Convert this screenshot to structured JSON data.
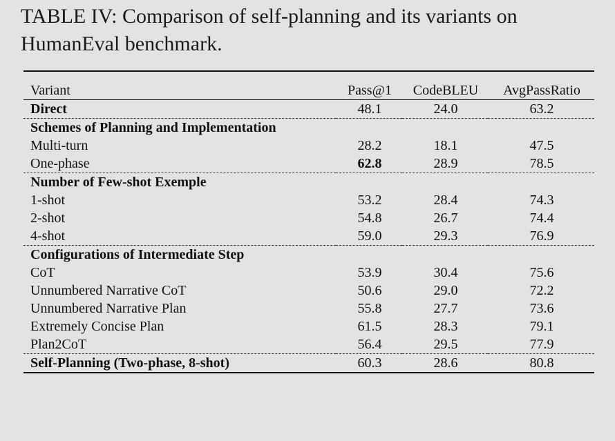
{
  "caption": "TABLE IV: Comparison of self-planning and its variants on HumanEval benchmark.",
  "columns": [
    "Variant",
    "Pass@1",
    "CodeBLEU",
    "AvgPassRatio"
  ],
  "direct": {
    "label": "Direct",
    "values": [
      "48.1",
      "24.0",
      "63.2"
    ]
  },
  "groups": [
    {
      "title": "Schemes of Planning and Implementation",
      "rows": [
        {
          "label": "Multi-turn",
          "values": [
            "28.2",
            "18.1",
            "47.5"
          ]
        },
        {
          "label": "One-phase",
          "values": [
            "62.8",
            "28.9",
            "78.5"
          ]
        }
      ]
    },
    {
      "title": "Number of Few-shot Exemple",
      "rows": [
        {
          "label": "1-shot",
          "values": [
            "53.2",
            "28.4",
            "74.3"
          ]
        },
        {
          "label": "2-shot",
          "values": [
            "54.8",
            "26.7",
            "74.4"
          ]
        },
        {
          "label": "4-shot",
          "values": [
            "59.0",
            "29.3",
            "76.9"
          ]
        }
      ]
    },
    {
      "title": "Configurations of Intermediate Step",
      "rows": [
        {
          "label": "CoT",
          "values": [
            "53.9",
            "30.4",
            "75.6"
          ]
        },
        {
          "label": "Unnumbered Narrative CoT",
          "values": [
            "50.6",
            "29.0",
            "72.2"
          ]
        },
        {
          "label": "Unnumbered Narrative Plan",
          "values": [
            "55.8",
            "27.7",
            "73.6"
          ]
        },
        {
          "label": "Extremely Concise Plan",
          "values": [
            "61.5",
            "28.3",
            "79.1"
          ]
        },
        {
          "label": "Plan2CoT",
          "values": [
            "56.4",
            "29.5",
            "77.9"
          ]
        }
      ]
    }
  ],
  "final": {
    "label": "Self-Planning (Two-phase, 8-shot)",
    "values": [
      "60.3",
      "28.6",
      "80.8"
    ]
  }
}
